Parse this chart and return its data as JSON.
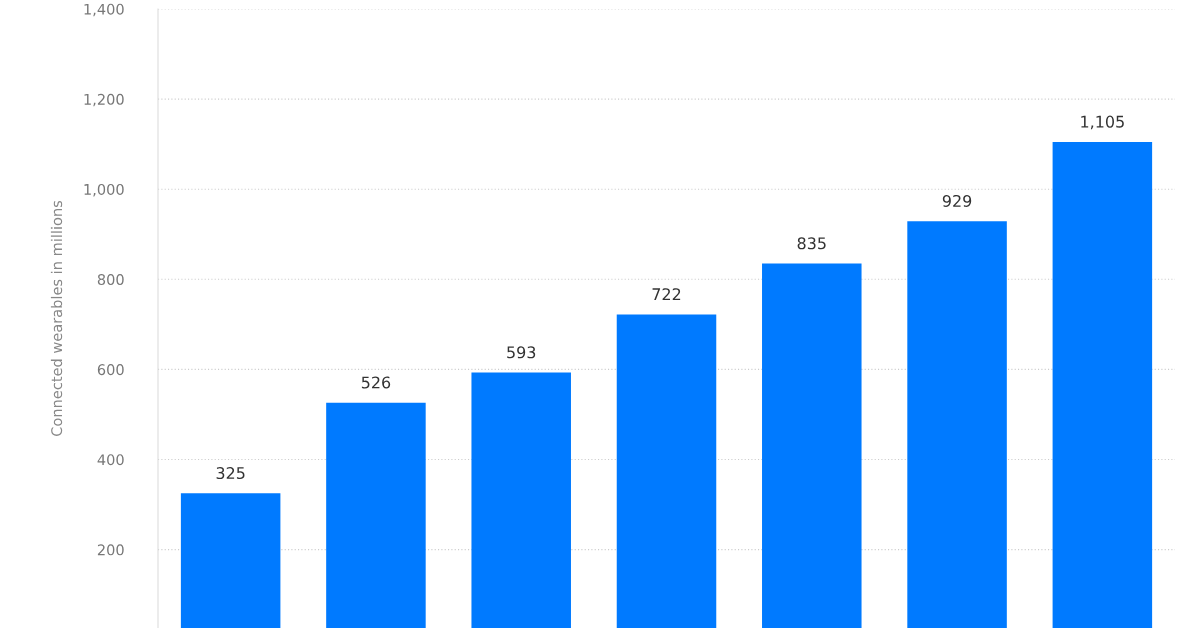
{
  "chart_data": {
    "type": "bar",
    "ylabel": "Connected wearables in millions",
    "categories": [
      null,
      null,
      null,
      null,
      null,
      null,
      null
    ],
    "values": [
      325,
      526,
      593,
      722,
      835,
      929,
      1105
    ],
    "color": "#007aff",
    "value_labels": [
      "325",
      "526",
      "593",
      "722",
      "835",
      "929",
      "1,105"
    ],
    "ylim": [
      26,
      1400
    ],
    "yticks": [
      200,
      400,
      600,
      800,
      {
        "value": 1000,
        "label": "1,000"
      },
      {
        "value": 1200,
        "label": "1,200"
      },
      {
        "value": 1400,
        "label": "1,400"
      }
    ],
    "grid": "y",
    "tick_labels": "y"
  }
}
